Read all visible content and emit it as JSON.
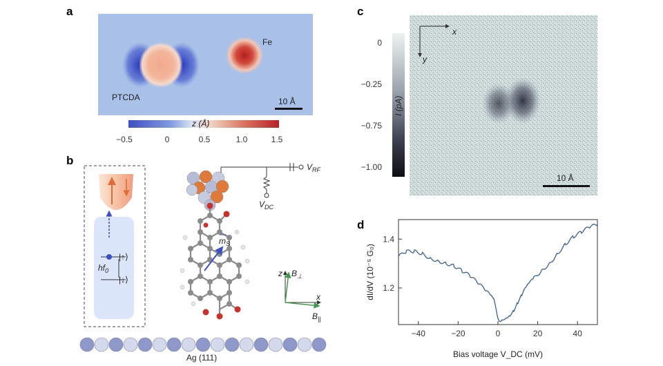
{
  "panels": {
    "a": {
      "letter": "a",
      "labels": {
        "ptcda": "PTCDA",
        "fe": "Fe",
        "scale": "10 Å"
      },
      "colorbar": {
        "label": "z (Å)",
        "ticks": [
          "−0.5",
          "0",
          "0.5",
          "1.0",
          "1.5"
        ]
      }
    },
    "b": {
      "letter": "b",
      "labels": {
        "vrf": "V",
        "vrf_sub": "RF",
        "vdc": "V",
        "vdc_sub": "DC",
        "ms": "m",
        "ms_sub": "S",
        "state_up": "|↑⟩",
        "state_down": "|↓⟩",
        "hf0": "hf",
        "hf0_sub": "0",
        "axis_z": "z",
        "axis_x": "x",
        "b_perp": "B",
        "b_perp_sub": "⊥",
        "b_par": "B",
        "b_par_sub": "||",
        "substrate": "Ag (111)"
      }
    },
    "c": {
      "letter": "c",
      "labels": {
        "axis_x": "x",
        "axis_y": "y",
        "scale": "10 Å"
      },
      "colorbar": {
        "label": "I (pA)",
        "ticks": [
          "0",
          "−0.25",
          "−0.75",
          "−1.00"
        ]
      }
    },
    "d": {
      "letter": "d"
    }
  },
  "colors": {
    "blue_low": "#3d4fc4",
    "red_high": "#b8202a",
    "line": "#3b5f8f",
    "spin_orange": "#e06a3a",
    "cu_orange": "#e07a3a",
    "field_green": "#3f9a4c"
  },
  "chart_data": {
    "type": "line",
    "title": "",
    "xlabel": "Bias voltage V_DC (mV)",
    "ylabel": "dI/dV (10⁻⁵ G₀)",
    "xlim": [
      -50,
      50
    ],
    "ylim": [
      1.05,
      1.48
    ],
    "xticks": [
      "−40",
      "−20",
      "0",
      "20",
      "40"
    ],
    "yticks": [
      "1.2",
      "1.4"
    ],
    "series": [
      {
        "x": [
          -50,
          -46,
          -42,
          -38,
          -34,
          -30,
          -26,
          -22,
          -18,
          -14,
          -10,
          -6,
          -4,
          -2,
          -1,
          0,
          1,
          2,
          4,
          6,
          8,
          10,
          12,
          14,
          16,
          18,
          22,
          26,
          30,
          34,
          38,
          42,
          46,
          50
        ],
        "values": [
          1.33,
          1.35,
          1.35,
          1.34,
          1.32,
          1.31,
          1.3,
          1.29,
          1.27,
          1.25,
          1.22,
          1.19,
          1.17,
          1.15,
          1.11,
          1.07,
          1.06,
          1.07,
          1.08,
          1.09,
          1.11,
          1.14,
          1.17,
          1.2,
          1.22,
          1.24,
          1.27,
          1.3,
          1.34,
          1.38,
          1.41,
          1.43,
          1.45,
          1.46
        ]
      }
    ]
  }
}
